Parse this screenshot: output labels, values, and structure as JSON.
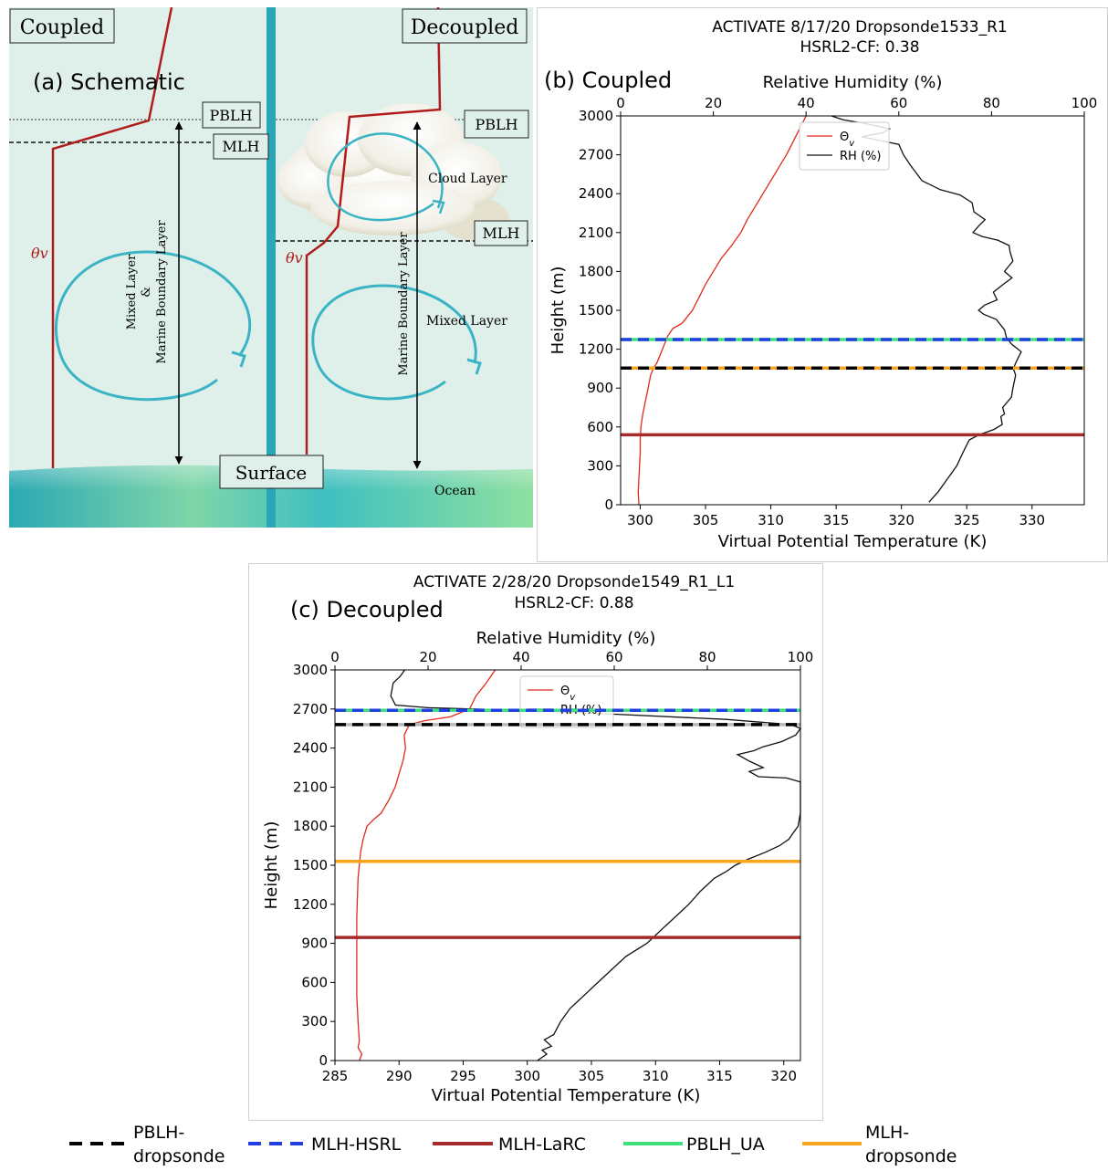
{
  "schematic": {
    "panel_label": "(a) Schematic",
    "coupled_label": "Coupled",
    "decoupled_label": "Decoupled",
    "pblh_label": "PBLH",
    "mlh_label": "MLH",
    "theta_label": "θv",
    "coupled_axis_label_line1": "Mixed Layer",
    "coupled_axis_label_line2": "&",
    "coupled_axis_label_line3": "Marine Boundary Layer",
    "decoupled_axis_label": "Marine Boundary Layer",
    "cloud_layer_label": "Cloud Layer",
    "mixed_layer_label": "Mixed Layer",
    "surface_label": "Surface",
    "ocean_label": "Ocean",
    "colors": {
      "background": "#dff0ea",
      "theta": "#b01c1c",
      "arrow": "#3ab4c4",
      "divider": "#2aa6b8"
    }
  },
  "legend": {
    "items": [
      {
        "label_line1": "PBLH-",
        "label_line2": "dropsonde",
        "style": "dashed",
        "color": "#000000"
      },
      {
        "label_line1": "MLH-HSRL",
        "label_line2": "",
        "style": "dashed",
        "color": "#1f3fe0"
      },
      {
        "label_line1": "MLH-LaRC",
        "label_line2": "",
        "style": "solid",
        "color": "#a52a2a"
      },
      {
        "label_line1": "PBLH_UA",
        "label_line2": "",
        "style": "solid",
        "color": "#3de07c"
      },
      {
        "label_line1": "MLH-",
        "label_line2": "dropsonde",
        "style": "solid",
        "color": "#f7a51c"
      }
    ]
  },
  "chart_data": [
    {
      "id": "b",
      "type": "line",
      "panel_label": "(b) Coupled",
      "title_line1": "ACTIVATE 8/17/20 Dropsonde1533_R1",
      "title_line2": "HSRL2-CF: 0.38",
      "xlabel_bottom": "Virtual Potential Temperature (K)",
      "xlabel_top": "Relative Humidity (%)",
      "ylabel": "Height (m)",
      "xlim_bottom": [
        298.5,
        334.0
      ],
      "xlim_top": [
        0,
        100
      ],
      "ylim": [
        0,
        3000
      ],
      "xticks_bottom": [
        300,
        305,
        310,
        315,
        320,
        325,
        330
      ],
      "xticks_top": [
        0,
        20,
        40,
        60,
        80,
        100
      ],
      "yticks": [
        0,
        300,
        600,
        900,
        1200,
        1500,
        1800,
        2100,
        2400,
        2700,
        3000
      ],
      "legend_entries": [
        "Θv",
        "RH (%)"
      ],
      "legend_position": "upper-center",
      "hlines": [
        {
          "name": "MLH-HSRL",
          "y": 1275,
          "style": "dashed",
          "color": "#1f3fe0",
          "under_color": "#3de07c"
        },
        {
          "name": "PBLH-dropsonde",
          "y": 1055,
          "style": "dashed",
          "color": "#000000",
          "under_color": "#f7a51c"
        },
        {
          "name": "MLH-LaRC",
          "y": 540,
          "style": "solid",
          "color": "#a52a2a"
        }
      ],
      "series": [
        {
          "name": "Θv",
          "axis": "bottom",
          "color": "#e0281c",
          "points": [
            [
              299.9,
              0
            ],
            [
              299.85,
              100
            ],
            [
              299.9,
              200
            ],
            [
              299.95,
              300
            ],
            [
              300.0,
              400
            ],
            [
              300.0,
              500
            ],
            [
              300.05,
              600
            ],
            [
              300.2,
              700
            ],
            [
              300.4,
              800
            ],
            [
              300.6,
              900
            ],
            [
              300.8,
              1000
            ],
            [
              301.0,
              1050
            ],
            [
              301.3,
              1100
            ],
            [
              301.7,
              1200
            ],
            [
              302.1,
              1300
            ],
            [
              302.5,
              1360
            ],
            [
              303.2,
              1400
            ],
            [
              304.0,
              1500
            ],
            [
              304.5,
              1600
            ],
            [
              305.0,
              1700
            ],
            [
              305.6,
              1800
            ],
            [
              306.2,
              1900
            ],
            [
              307.0,
              2000
            ],
            [
              307.7,
              2100
            ],
            [
              308.2,
              2200
            ],
            [
              308.8,
              2300
            ],
            [
              309.4,
              2400
            ],
            [
              310.0,
              2500
            ],
            [
              310.6,
              2600
            ],
            [
              311.2,
              2700
            ],
            [
              311.7,
              2800
            ],
            [
              312.2,
              2900
            ],
            [
              312.7,
              3000
            ]
          ]
        },
        {
          "name": "RH (%)",
          "axis": "top",
          "color": "#111111",
          "points": [
            [
              66.5,
              20
            ],
            [
              68.5,
              100
            ],
            [
              70.5,
              200
            ],
            [
              72.5,
              300
            ],
            [
              73.8,
              400
            ],
            [
              75.2,
              500
            ],
            [
              77.3,
              540
            ],
            [
              80.5,
              580
            ],
            [
              82.3,
              620
            ],
            [
              82.0,
              680
            ],
            [
              82.8,
              700
            ],
            [
              82.4,
              750
            ],
            [
              84.3,
              830
            ],
            [
              84.6,
              900
            ],
            [
              85.2,
              1000
            ],
            [
              84.7,
              1050
            ],
            [
              85.3,
              1100
            ],
            [
              86.4,
              1180
            ],
            [
              84.3,
              1240
            ],
            [
              83.2,
              1290
            ],
            [
              82.8,
              1350
            ],
            [
              81.0,
              1430
            ],
            [
              78.3,
              1470
            ],
            [
              77.2,
              1500
            ],
            [
              78.5,
              1540
            ],
            [
              81.2,
              1580
            ],
            [
              80.4,
              1640
            ],
            [
              82.5,
              1700
            ],
            [
              84.4,
              1750
            ],
            [
              82.8,
              1800
            ],
            [
              84.6,
              1880
            ],
            [
              84.0,
              1950
            ],
            [
              83.8,
              2000
            ],
            [
              81.4,
              2040
            ],
            [
              78.0,
              2070
            ],
            [
              76.0,
              2100
            ],
            [
              77.2,
              2150
            ],
            [
              78.6,
              2200
            ],
            [
              76.2,
              2260
            ],
            [
              75.8,
              2330
            ],
            [
              73.2,
              2390
            ],
            [
              69.0,
              2430
            ],
            [
              65.0,
              2500
            ],
            [
              62.5,
              2620
            ],
            [
              61.0,
              2700
            ],
            [
              60.0,
              2780
            ],
            [
              56.0,
              2810
            ],
            [
              52.0,
              2840
            ],
            [
              56.5,
              2870
            ],
            [
              58.0,
              2900
            ],
            [
              53.0,
              2940
            ],
            [
              48.0,
              2970
            ],
            [
              45.5,
              3000
            ]
          ]
        }
      ]
    },
    {
      "id": "c",
      "type": "line",
      "panel_label": "(c) Decoupled",
      "title_line1": "ACTIVATE 2/28/20 Dropsonde1549_R1_L1",
      "title_line2": "HSRL2-CF: 0.88",
      "xlabel_bottom": "Virtual Potential Temperature (K)",
      "xlabel_top": "Relative Humidity (%)",
      "ylabel": "Height (m)",
      "xlim_bottom": [
        285,
        321.3
      ],
      "xlim_top": [
        0,
        100
      ],
      "ylim": [
        0,
        3000
      ],
      "xticks_bottom": [
        285,
        290,
        295,
        300,
        305,
        310,
        315,
        320
      ],
      "xticks_top": [
        0,
        20,
        40,
        60,
        80,
        100
      ],
      "yticks": [
        0,
        300,
        600,
        900,
        1200,
        1500,
        1800,
        2100,
        2400,
        2700,
        3000
      ],
      "legend_entries": [
        "Θv",
        "RH (%)"
      ],
      "legend_position": "upper-center",
      "hlines": [
        {
          "name": "MLH-HSRL",
          "y": 2690,
          "style": "dashed",
          "color": "#1f3fe0",
          "under_color": "#3de07c"
        },
        {
          "name": "PBLH-dropsonde",
          "y": 2580,
          "style": "dashed",
          "color": "#000000",
          "under_color": "#b8b8b8"
        },
        {
          "name": "MLH-dropsonde",
          "y": 1530,
          "style": "solid",
          "color": "#f7a51c"
        },
        {
          "name": "MLH-LaRC",
          "y": 945,
          "style": "solid",
          "color": "#a52a2a"
        }
      ],
      "series": [
        {
          "name": "Θv",
          "axis": "bottom",
          "color": "#e0281c",
          "points": [
            [
              286.9,
              0
            ],
            [
              287.1,
              50
            ],
            [
              286.8,
              100
            ],
            [
              286.9,
              150
            ],
            [
              286.8,
              300
            ],
            [
              286.7,
              500
            ],
            [
              286.7,
              800
            ],
            [
              286.7,
              1100
            ],
            [
              286.8,
              1400
            ],
            [
              287.0,
              1600
            ],
            [
              287.2,
              1700
            ],
            [
              287.5,
              1800
            ],
            [
              288.0,
              1850
            ],
            [
              288.6,
              1900
            ],
            [
              289.2,
              2000
            ],
            [
              289.7,
              2100
            ],
            [
              290.0,
              2200
            ],
            [
              290.3,
              2300
            ],
            [
              290.5,
              2400
            ],
            [
              290.4,
              2500
            ],
            [
              290.8,
              2580
            ],
            [
              292.0,
              2610
            ],
            [
              294.0,
              2640
            ],
            [
              295.5,
              2700
            ],
            [
              296.0,
              2800
            ],
            [
              296.8,
              2900
            ],
            [
              297.5,
              3000
            ]
          ]
        },
        {
          "name": "RH (%)",
          "axis": "top",
          "color": "#111111",
          "points": [
            [
              43.5,
              0
            ],
            [
              45.5,
              50
            ],
            [
              44.5,
              80
            ],
            [
              46.5,
              110
            ],
            [
              45.0,
              160
            ],
            [
              47.0,
              200
            ],
            [
              48.5,
              300
            ],
            [
              50.5,
              400
            ],
            [
              53.5,
              500
            ],
            [
              56.5,
              600
            ],
            [
              59.5,
              700
            ],
            [
              62.5,
              800
            ],
            [
              67.0,
              900
            ],
            [
              68.5,
              950
            ],
            [
              70.0,
              1000
            ],
            [
              73.0,
              1100
            ],
            [
              76.0,
              1200
            ],
            [
              78.5,
              1300
            ],
            [
              81.5,
              1400
            ],
            [
              84.0,
              1450
            ],
            [
              86.0,
              1500
            ],
            [
              89.0,
              1550
            ],
            [
              92.5,
              1600
            ],
            [
              95.5,
              1650
            ],
            [
              97.5,
              1700
            ],
            [
              98.5,
              1750
            ],
            [
              99.5,
              1800
            ],
            [
              100,
              1900
            ],
            [
              100,
              2000
            ],
            [
              100,
              2140
            ],
            [
              97.0,
              2170
            ],
            [
              91.0,
              2180
            ],
            [
              89.0,
              2220
            ],
            [
              92.0,
              2250
            ],
            [
              89.0,
              2300
            ],
            [
              86.5,
              2350
            ],
            [
              90.0,
              2380
            ],
            [
              92.0,
              2410
            ],
            [
              96.0,
              2450
            ],
            [
              99.0,
              2500
            ],
            [
              100,
              2550
            ],
            [
              98.0,
              2580
            ],
            [
              84.0,
              2620
            ],
            [
              60.0,
              2660
            ],
            [
              40.0,
              2690
            ],
            [
              20.0,
              2710
            ],
            [
              13.0,
              2730
            ],
            [
              12.0,
              2800
            ],
            [
              12.5,
              2900
            ],
            [
              14.0,
              2950
            ],
            [
              15.0,
              3000
            ]
          ]
        }
      ]
    }
  ]
}
